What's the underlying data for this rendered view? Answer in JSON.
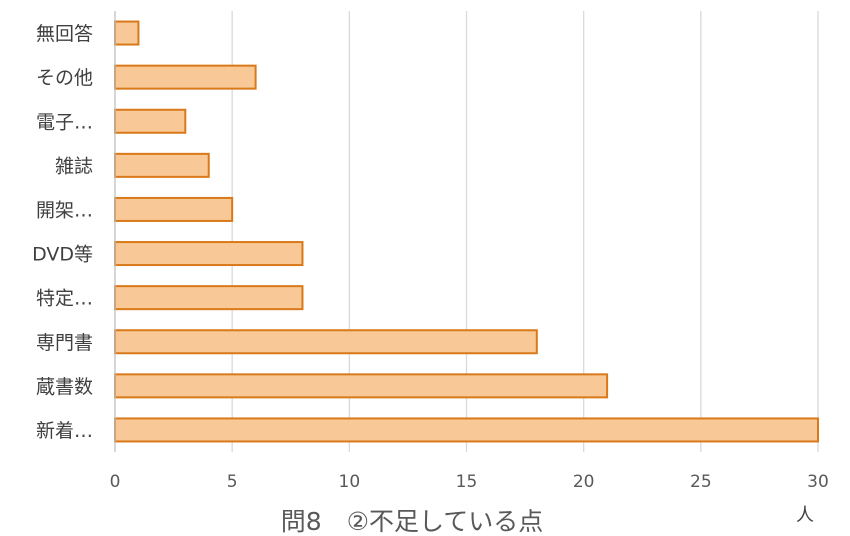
{
  "chart_data": {
    "type": "bar",
    "orientation": "horizontal",
    "title": "問8　②不足している点",
    "xlabel": "人",
    "ylabel": "",
    "categories": [
      "無回答",
      "その他",
      "電子…",
      "雑誌",
      "開架…",
      "DVD等",
      "特定…",
      "専門書",
      "蔵書数",
      "新着…"
    ],
    "values": [
      1,
      6,
      3,
      4,
      5,
      8,
      8,
      18,
      21,
      30
    ],
    "xlim": [
      0,
      30
    ],
    "xticks": [
      0,
      5,
      10,
      15,
      20,
      25,
      30
    ],
    "grid": "vertical",
    "legend": "none",
    "colors": {
      "bar_fill": "#F8C996",
      "bar_stroke": "#D9791A",
      "grid": "#D9D9D9",
      "axis": "#BFBFBF"
    }
  }
}
